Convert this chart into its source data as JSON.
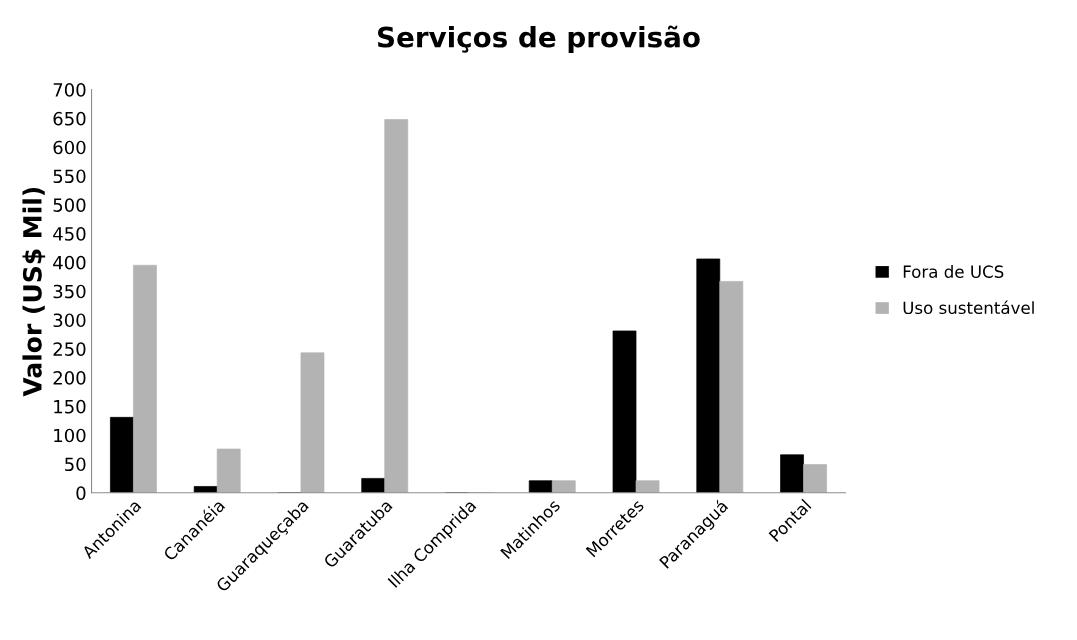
{
  "chart_data": {
    "type": "bar",
    "title": "Serviços de provisão",
    "ylabel": "Valor (US$ Mil)",
    "categories": [
      "Antonina",
      "Cananéia",
      "Guaraqueçaba",
      "Guaratuba",
      "Ilha Comprida",
      "Matinhos",
      "Morretes",
      "Paranaguá",
      "Pontal"
    ],
    "series": [
      {
        "name": "Fora de UCS",
        "color": "#000000",
        "values": [
          131,
          11,
          0,
          25,
          0,
          21,
          281,
          406,
          66
        ]
      },
      {
        "name": "Uso sustentável",
        "color": "#b3b3b3",
        "values": [
          395,
          76,
          243,
          648,
          0,
          21,
          21,
          367,
          49
        ]
      }
    ],
    "ylim": [
      0,
      700
    ],
    "yticks": [
      0,
      50,
      100,
      150,
      200,
      250,
      300,
      350,
      400,
      450,
      500,
      550,
      600,
      650,
      700
    ],
    "grid": false,
    "legend": "right"
  }
}
